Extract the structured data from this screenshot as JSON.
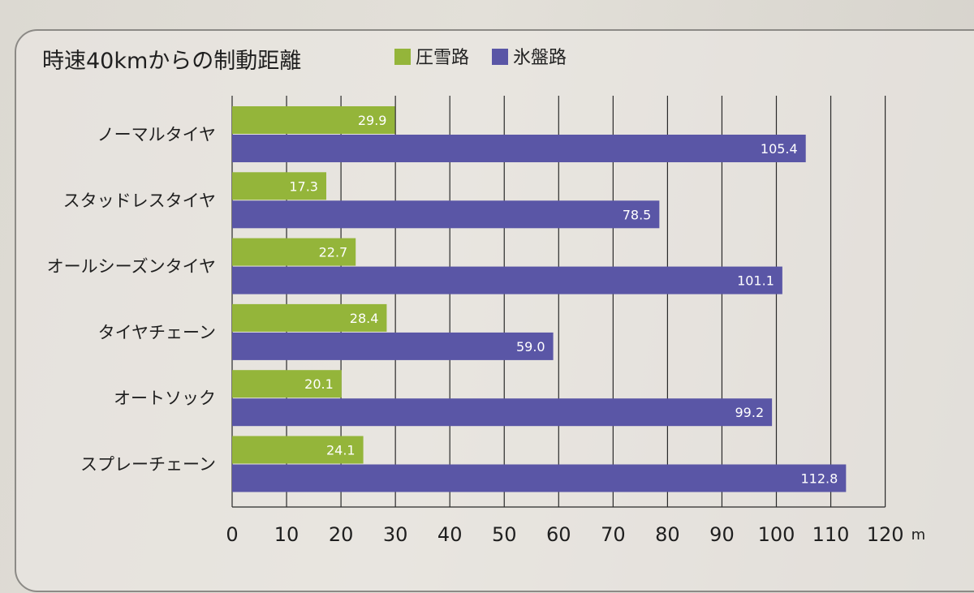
{
  "chart_data": {
    "type": "bar",
    "orientation": "horizontal",
    "title": "時速40kmからの制動距離",
    "categories": [
      "ノーマルタイヤ",
      "スタッドレスタイヤ",
      "オールシーズンタイヤ",
      "タイヤチェーン",
      "オートソック",
      "スプレーチェーン"
    ],
    "series": [
      {
        "name": "圧雪路",
        "color": "#94b53a",
        "values": [
          29.9,
          17.3,
          22.7,
          28.4,
          20.1,
          24.1
        ],
        "labels": [
          "29.9",
          "17.3",
          "22.7",
          "28.4",
          "20.1",
          "24.1"
        ]
      },
      {
        "name": "氷盤路",
        "color": "#5a56a6",
        "values": [
          105.4,
          78.5,
          101.1,
          59.0,
          99.2,
          112.8
        ],
        "labels": [
          "105.4",
          "78.5",
          "101.1",
          "59.0",
          "99.2",
          "112.8"
        ]
      }
    ],
    "xlim": [
      0,
      120
    ],
    "xticks": [
      "0",
      "10",
      "20",
      "30",
      "40",
      "50",
      "60",
      "70",
      "80",
      "90",
      "100",
      "110",
      "120"
    ],
    "xunit": "m",
    "grid": true,
    "legend_position": "top"
  }
}
